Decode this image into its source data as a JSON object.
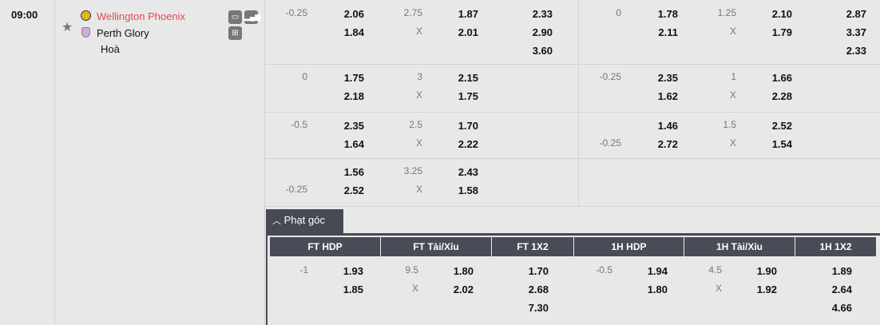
{
  "match": {
    "time": "09:00",
    "home": "Wellington Phoenix",
    "away": "Perth Glory",
    "draw": "Hoà",
    "home_color": "#e8474f"
  },
  "icons": [
    "star-icon",
    "home-team-logo",
    "away-team-logo",
    "tv-icon",
    "stats-icon",
    "lineup-icon"
  ],
  "odds_rows": [
    {
      "ft": {
        "hdp_line": "-0.25",
        "hdp_line_row": 0,
        "hdp": [
          "2.06",
          "1.84"
        ],
        "ou_line": "2.75",
        "ou": [
          "1.87",
          "2.01"
        ],
        "x": "X",
        "x12": [
          "2.33",
          "2.90",
          "3.60"
        ]
      },
      "h1": {
        "hdp_line": "0",
        "hdp_line_row": 0,
        "hdp": [
          "1.78",
          "2.11"
        ],
        "ou_line": "1.25",
        "ou": [
          "2.10",
          "1.79"
        ],
        "x": "X",
        "x12": [
          "2.87",
          "3.37",
          "2.33"
        ]
      }
    },
    {
      "ft": {
        "hdp_line": "0",
        "hdp_line_row": 0,
        "hdp": [
          "1.75",
          "2.18"
        ],
        "ou_line": "3",
        "ou": [
          "2.15",
          "1.75"
        ],
        "x": "X"
      },
      "h1": {
        "hdp_line": "-0.25",
        "hdp_line_row": 0,
        "hdp": [
          "2.35",
          "1.62"
        ],
        "ou_line": "1",
        "ou": [
          "1.66",
          "2.28"
        ],
        "x": "X"
      }
    },
    {
      "ft": {
        "hdp_line": "-0.5",
        "hdp_line_row": 0,
        "hdp": [
          "2.35",
          "1.64"
        ],
        "ou_line": "2.5",
        "ou": [
          "1.70",
          "2.22"
        ],
        "x": "X"
      },
      "h1": {
        "hdp_line": "-0.25",
        "hdp_line_row": 1,
        "hdp": [
          "1.46",
          "2.72"
        ],
        "ou_line": "1.5",
        "ou": [
          "2.52",
          "1.54"
        ],
        "x": "X"
      }
    },
    {
      "ft": {
        "hdp_line": "-0.25",
        "hdp_line_row": 1,
        "hdp": [
          "1.56",
          "2.52"
        ],
        "ou_line": "3.25",
        "ou": [
          "2.43",
          "1.58"
        ],
        "x": "X"
      },
      "h1": null
    }
  ],
  "corners": {
    "tab_label": "Phạt góc",
    "headers": [
      "FT HDP",
      "FT Tài/Xỉu",
      "FT 1X2",
      "1H HDP",
      "1H Tài/Xỉu",
      "1H 1X2"
    ],
    "ft": {
      "hdp_line": "-1",
      "hdp": [
        "1.93",
        "1.85"
      ],
      "ou_line": "9.5",
      "ou": [
        "1.80",
        "2.02"
      ],
      "x": "X",
      "x12": [
        "1.70",
        "2.68",
        "7.30"
      ]
    },
    "h1": {
      "hdp_line": "-0.5",
      "hdp": [
        "1.94",
        "1.80"
      ],
      "ou_line": "4.5",
      "ou": [
        "1.90",
        "1.92"
      ],
      "x": "X",
      "x12": [
        "1.89",
        "2.64",
        "4.66"
      ]
    }
  }
}
